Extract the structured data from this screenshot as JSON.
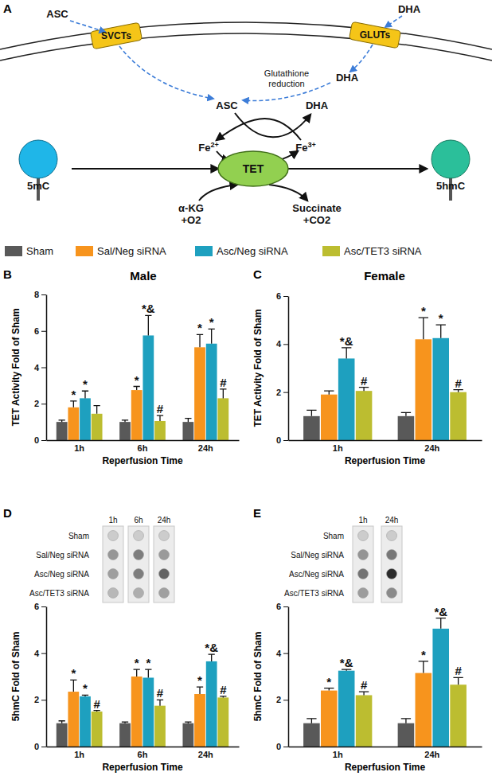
{
  "diagram": {
    "panel": "A",
    "nodes": [
      {
        "lines": [
          "ASC"
        ]
      },
      {
        "lines": [
          "DHA"
        ]
      },
      {
        "lines": [
          "SVCTs"
        ]
      },
      {
        "lines": [
          "GLUTs"
        ]
      },
      {
        "lines": [
          "Glutathione",
          "reduction"
        ]
      },
      {
        "lines": [
          "DHA"
        ]
      },
      {
        "lines": [
          "ASC"
        ]
      },
      {
        "lines": [
          "DHA"
        ]
      },
      {
        "lines": [
          "Fe2+"
        ]
      },
      {
        "lines": [
          "Fe3+"
        ]
      },
      {
        "lines": [
          "TET"
        ]
      },
      {
        "lines": [
          "5mC"
        ]
      },
      {
        "lines": [
          "5hmC"
        ]
      },
      {
        "lines": [
          "α-KG",
          "+O2"
        ]
      },
      {
        "lines": [
          "Succinate",
          "+CO2"
        ]
      }
    ]
  },
  "shared_legend": {
    "entries": [
      {
        "name": "Sham",
        "color": "#595959"
      },
      {
        "name": "Sal/Neg siRNA",
        "color": "#f7941d"
      },
      {
        "name": "Asc/Neg siRNA",
        "color": "#1ea0bf"
      },
      {
        "name": "Asc/TET3 siRNA",
        "color": "#bcbd30"
      }
    ]
  },
  "chart_data": [
    {
      "type": "bar",
      "panel": "B",
      "title": "Male",
      "x_label": "Reperfusion Time",
      "y_label": "TET Activity Fold of Sham",
      "categories": [
        "1h",
        "6h",
        "24h"
      ],
      "ylim": [
        0,
        8
      ],
      "yticks": [
        0,
        2,
        4,
        6,
        8
      ],
      "series": [
        {
          "values": [
            1.0,
            1.0,
            1.0
          ],
          "errors": [
            0.1,
            0.1,
            0.2
          ]
        },
        {
          "values": [
            1.8,
            2.75,
            5.1
          ],
          "errors": [
            0.35,
            0.2,
            0.7
          ],
          "annotations": [
            "*",
            "*",
            "*"
          ]
        },
        {
          "values": [
            2.3,
            5.75,
            5.3
          ],
          "errors": [
            0.4,
            1.1,
            0.8
          ],
          "annotations": [
            "*",
            "*&",
            "*"
          ]
        },
        {
          "values": [
            1.45,
            1.05,
            2.3
          ],
          "errors": [
            0.45,
            0.3,
            0.5
          ],
          "annotations": [
            null,
            "#",
            "#"
          ]
        }
      ]
    },
    {
      "type": "bar",
      "panel": "C",
      "title": "Female",
      "x_label": "Reperfusion Time",
      "y_label": "TET Activity Fold of Sham",
      "categories": [
        "1h",
        "24h"
      ],
      "ylim": [
        0,
        6
      ],
      "yticks": [
        0,
        2,
        4,
        6
      ],
      "series": [
        {
          "values": [
            1.0,
            1.0
          ],
          "errors": [
            0.25,
            0.15
          ]
        },
        {
          "values": [
            1.9,
            4.2
          ],
          "errors": [
            0.15,
            0.9
          ],
          "annotations": [
            null,
            "*"
          ]
        },
        {
          "values": [
            3.4,
            4.25
          ],
          "errors": [
            0.45,
            0.55
          ],
          "annotations": [
            "*&",
            "*"
          ]
        },
        {
          "values": [
            2.05,
            2.0
          ],
          "errors": [
            0.15,
            0.1
          ],
          "annotations": [
            "#",
            "#"
          ]
        }
      ]
    },
    {
      "type": "bar",
      "panel": "D",
      "x_label": "Reperfusion Time",
      "y_label": "5hmC Fold of Sham",
      "categories": [
        "1h",
        "6h",
        "24h"
      ],
      "ylim": [
        0,
        6
      ],
      "yticks": [
        0,
        2,
        4,
        6
      ],
      "series": [
        {
          "values": [
            1.0,
            1.0,
            1.0
          ],
          "errors": [
            0.1,
            0.05,
            0.05
          ]
        },
        {
          "values": [
            2.35,
            3.0,
            2.25
          ],
          "errors": [
            0.5,
            0.3,
            0.3
          ],
          "annotations": [
            "*",
            "*",
            "*"
          ]
        },
        {
          "values": [
            2.15,
            2.95,
            3.65
          ],
          "errors": [
            0.05,
            0.35,
            0.3
          ],
          "annotations": [
            "*",
            "*",
            "*&"
          ]
        },
        {
          "values": [
            1.5,
            1.75,
            2.1
          ],
          "errors": [
            0.05,
            0.25,
            0.05
          ],
          "annotations": [
            "#",
            "#",
            "#"
          ]
        }
      ],
      "dot_blot": {
        "columns": [
          "1h",
          "6h",
          "24h"
        ],
        "rows": [
          "Sham",
          "Sal/Neg siRNA",
          "Asc/Neg siRNA",
          "Asc/TET3 siRNA"
        ]
      }
    },
    {
      "type": "bar",
      "panel": "E",
      "x_label": "Reperfusion Time",
      "y_label": "5hmC Fold of Sham",
      "categories": [
        "1h",
        "24h"
      ],
      "ylim": [
        0,
        6
      ],
      "yticks": [
        0,
        2,
        4,
        6
      ],
      "series": [
        {
          "values": [
            1.0,
            1.0
          ],
          "errors": [
            0.2,
            0.2
          ]
        },
        {
          "values": [
            2.4,
            3.15
          ],
          "errors": [
            0.1,
            0.5
          ],
          "annotations": [
            "*",
            "*"
          ]
        },
        {
          "values": [
            3.25,
            5.05
          ],
          "errors": [
            0.05,
            0.45
          ],
          "annotations": [
            "*&",
            "*&"
          ]
        },
        {
          "values": [
            2.2,
            2.65
          ],
          "errors": [
            0.15,
            0.3
          ],
          "annotations": [
            "#",
            "#"
          ]
        }
      ],
      "dot_blot": {
        "columns": [
          "1h",
          "24h"
        ],
        "rows": [
          "Sham",
          "Sal/Neg siRNA",
          "Asc/Neg siRNA",
          "Asc/TET3 siRNA"
        ]
      }
    }
  ]
}
